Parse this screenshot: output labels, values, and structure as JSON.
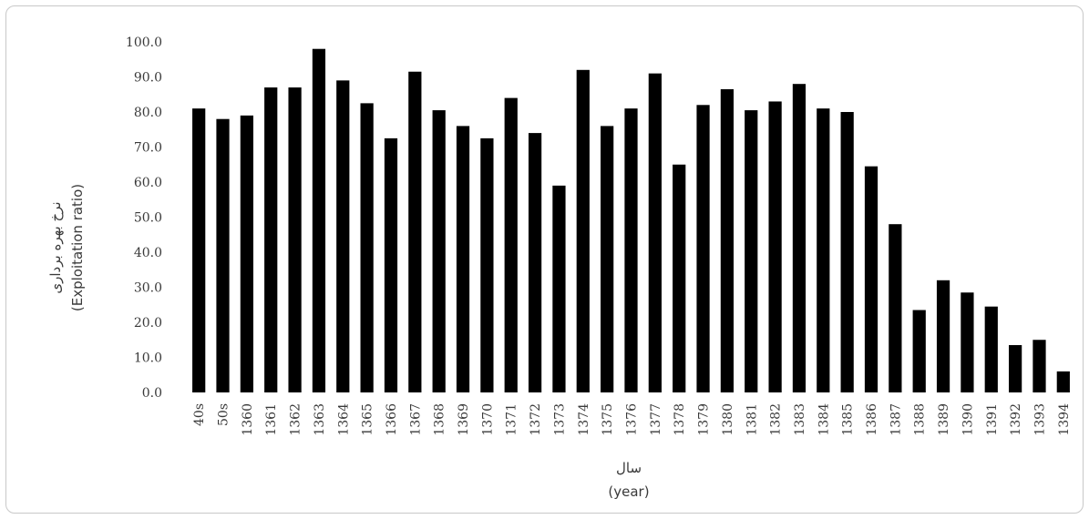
{
  "chart_data": {
    "type": "bar",
    "title": "",
    "xlabel": "سال",
    "xlabel_en": "(year)",
    "ylabel": "نرخ بهره برداری",
    "ylabel_en": "(Exploitation ratio)",
    "ylim": [
      0,
      100
    ],
    "ytick_labels": [
      "0.0",
      "10.0",
      "20.0",
      "30.0",
      "40.0",
      "50.0",
      "60.0",
      "70.0",
      "80.0",
      "90.0",
      "100.0"
    ],
    "grid": false,
    "legend": "none",
    "bar_color": "#000000",
    "categories": [
      "40s",
      "50s",
      "1360",
      "1361",
      "1362",
      "1363",
      "1364",
      "1365",
      "1366",
      "1367",
      "1368",
      "1369",
      "1370",
      "1371",
      "1372",
      "1373",
      "1374",
      "1375",
      "1376",
      "1377",
      "1378",
      "1379",
      "1380",
      "1381",
      "1382",
      "1383",
      "1384",
      "1385",
      "1386",
      "1387",
      "1388",
      "1389",
      "1390",
      "1391",
      "1392",
      "1393",
      "1394"
    ],
    "values": [
      81,
      78,
      79,
      87,
      87,
      98,
      89,
      82.5,
      72.5,
      91.5,
      80.5,
      76,
      72.5,
      84,
      74,
      59,
      92,
      76,
      81,
      91,
      65,
      82,
      86.5,
      80.5,
      83,
      88,
      81,
      80,
      64.5,
      48,
      23.5,
      32,
      28.5,
      24.5,
      13.5,
      15,
      6
    ]
  }
}
